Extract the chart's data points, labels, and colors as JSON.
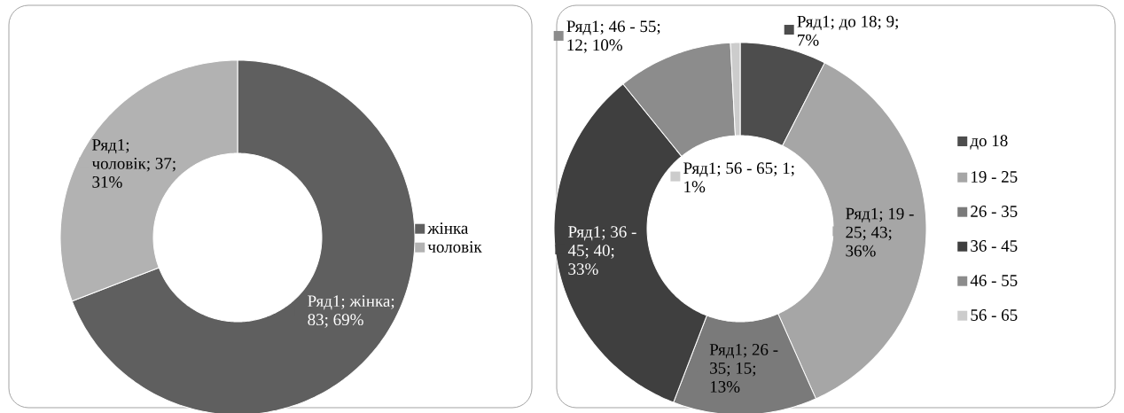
{
  "chart_data": [
    {
      "type": "donut",
      "categories": [
        "жінка",
        "чоловік"
      ],
      "values": [
        83,
        37
      ],
      "colors": [
        "#5f5f5f",
        "#b2b2b2"
      ],
      "value_labels": [
        "Ряд1; жінка; 83; 69%",
        "Ряд1; чоловік; 37; 31%"
      ],
      "legend": "right"
    },
    {
      "type": "donut",
      "categories": [
        "до 18",
        "19 - 25",
        "26 - 35",
        "36 - 45",
        "46 - 55",
        "56 - 65"
      ],
      "values": [
        9,
        43,
        15,
        40,
        12,
        1
      ],
      "colors": [
        "#4d4d4d",
        "#a6a6a6",
        "#7a7a7a",
        "#3f3f3f",
        "#8c8c8c",
        "#cccccc"
      ],
      "value_labels": [
        "Ряд1; до 18; 9; 7%",
        "Ряд1; 19 - 25; 43; 36%",
        "Ряд1; 26 - 35; 15; 13%",
        "Ряд1; 36 - 45; 40; 33%",
        "Ряд1; 46 - 55; 12; 10%",
        "Ряд1; 56 - 65; 1; 1%"
      ],
      "legend": "right"
    }
  ]
}
